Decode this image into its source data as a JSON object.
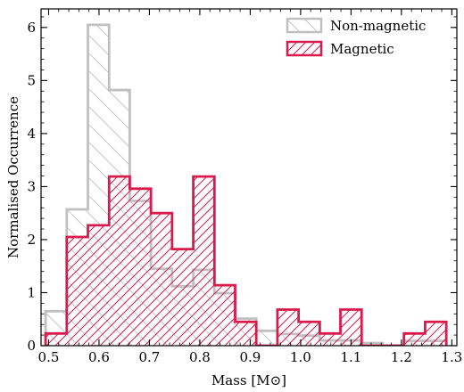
{
  "chart_data": {
    "type": "histogram",
    "xlabel": "Mass [M⊙]",
    "ylabel": "Normalised Occurrence",
    "xlim": [
      0.485,
      1.31
    ],
    "ylim": [
      0,
      6.35
    ],
    "x_ticks": [
      0.5,
      0.6,
      0.7,
      0.8,
      0.9,
      1.0,
      1.1,
      1.2,
      1.3
    ],
    "x_tick_labels": [
      "0.5",
      "0.6",
      "0.7",
      "0.8",
      "0.9",
      "1.0",
      "1.1",
      "1.2",
      "1.3"
    ],
    "y_ticks": [
      0,
      1,
      2,
      3,
      4,
      5,
      6
    ],
    "y_tick_labels": [
      "0",
      "1",
      "2",
      "3",
      "4",
      "5",
      "6"
    ],
    "grid": false,
    "legend_position": "top-right",
    "bin_edges": [
      0.494,
      0.536,
      0.578,
      0.62,
      0.661,
      0.703,
      0.745,
      0.787,
      0.829,
      0.87,
      0.912,
      0.954,
      0.996,
      1.038,
      1.079,
      1.121,
      1.163,
      1.205,
      1.247,
      1.289
    ],
    "series": [
      {
        "name": "Non-magnetic",
        "color": "#c0c0c0",
        "hatch": "backslash",
        "values": [
          0.65,
          2.57,
          6.05,
          4.82,
          2.73,
          1.45,
          1.12,
          1.43,
          0.99,
          0.51,
          0.28,
          0.22,
          0.19,
          0.1,
          0.1,
          0.05,
          0.0,
          0.09,
          0.09
        ]
      },
      {
        "name": "Magnetic",
        "color": "#d91a4c",
        "hatch": "slash",
        "values": [
          0.23,
          2.05,
          2.27,
          3.19,
          2.96,
          2.5,
          1.82,
          3.19,
          1.14,
          0.45,
          0.0,
          0.68,
          0.45,
          0.23,
          0.68,
          0.0,
          0.0,
          0.23,
          0.45
        ]
      }
    ]
  }
}
